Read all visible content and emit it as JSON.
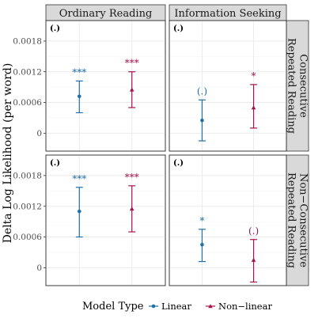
{
  "chart_data": {
    "type": "errorbar",
    "ylabel": "Delta Log Likelihood (per word)",
    "columns": [
      "Ordinary Reading",
      "Information Seeking"
    ],
    "rows": [
      "Consecutive\nRepeated Reading",
      "Non−Consecutive\nRepeated Reading"
    ],
    "yticks": [
      0,
      0.0006,
      0.0012,
      0.0018
    ],
    "ytick_labels": [
      "0",
      "0.0006",
      "0.0012",
      "0.0018"
    ],
    "ylim": [
      -0.00035,
      0.0022
    ],
    "legend": {
      "title": "Model Type",
      "position": "bottom",
      "entries": [
        {
          "label": "Linear",
          "color": "#1f6fa8",
          "shape": "circle"
        },
        {
          "label": "Non−linear",
          "color": "#a3134d",
          "shape": "triangle"
        }
      ]
    },
    "panels": [
      {
        "row": 0,
        "col": 0,
        "marker_label": "(.)",
        "points": [
          {
            "series": "Linear",
            "y": 0.00072,
            "low": 0.0004,
            "high": 0.00102,
            "sig": "***"
          },
          {
            "series": "Non−linear",
            "y": 0.00085,
            "low": 0.0005,
            "high": 0.0012,
            "sig": "***"
          }
        ]
      },
      {
        "row": 0,
        "col": 1,
        "marker_label": "(.)",
        "points": [
          {
            "series": "Linear",
            "y": 0.00025,
            "low": -0.00015,
            "high": 0.00065,
            "sig": "(.)"
          },
          {
            "series": "Non−linear",
            "y": 0.0005,
            "low": 0.0001,
            "high": 0.00095,
            "sig": "*"
          }
        ]
      },
      {
        "row": 1,
        "col": 0,
        "marker_label": "(.)",
        "points": [
          {
            "series": "Linear",
            "y": 0.0011,
            "low": 0.0006,
            "high": 0.00157,
            "sig": "***"
          },
          {
            "series": "Non−linear",
            "y": 0.00115,
            "low": 0.0007,
            "high": 0.0016,
            "sig": "***"
          }
        ]
      },
      {
        "row": 1,
        "col": 1,
        "marker_label": "(.)",
        "points": [
          {
            "series": "Linear",
            "y": 0.00045,
            "low": 0.00012,
            "high": 0.00075,
            "sig": "*"
          },
          {
            "series": "Non−linear",
            "y": 0.00015,
            "low": -0.00028,
            "high": 0.00055,
            "sig": "(.)"
          }
        ]
      }
    ]
  }
}
